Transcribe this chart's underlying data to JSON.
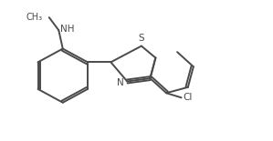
{
  "background_color": "#ffffff",
  "line_color": "#4a4a4a",
  "figsize": [
    2.99,
    1.55
  ],
  "dpi": 100,
  "bond_lw": 1.4,
  "font_size": 7.5,
  "atoms": {
    "S_label": "S",
    "N_label": "N",
    "Cl_label": "Cl",
    "NH_label": "NH",
    "CH3_label": "CH₃"
  }
}
